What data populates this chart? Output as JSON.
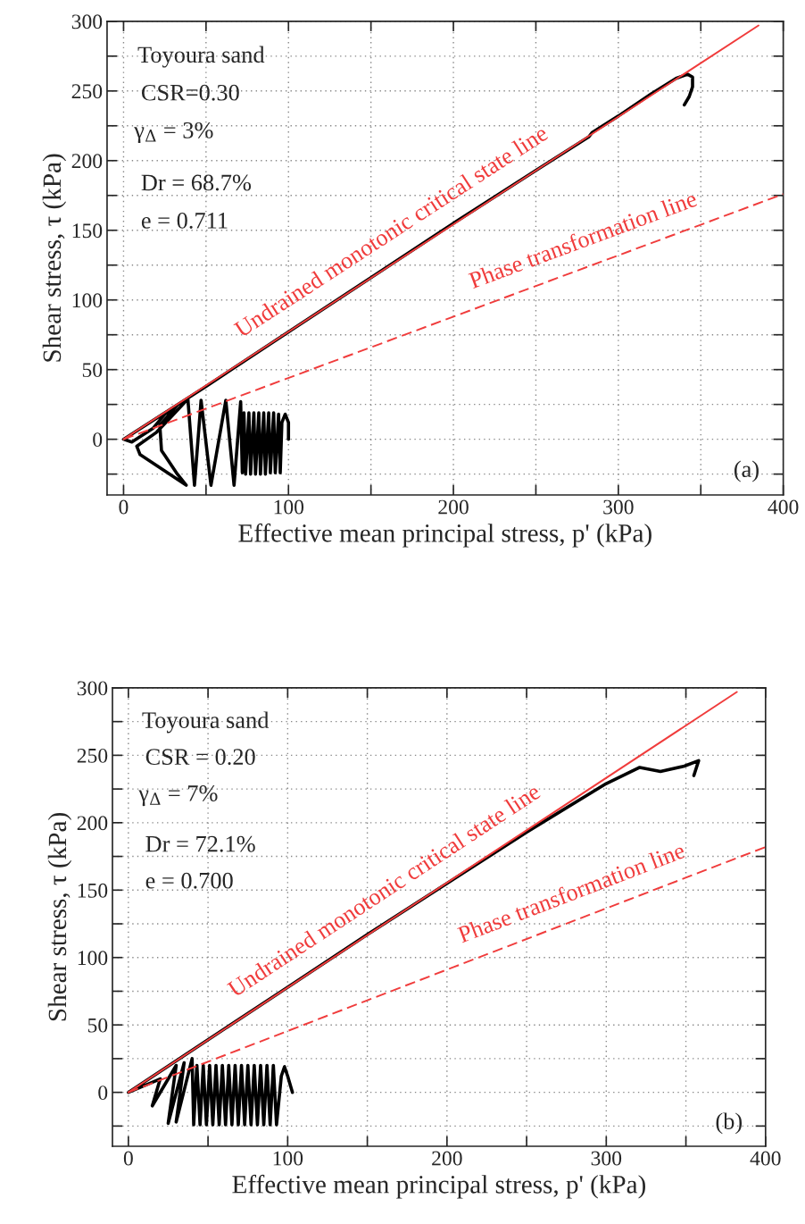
{
  "chart_data": [
    {
      "type": "line",
      "xlabel": "Effective mean principal stress, p' (kPa)",
      "ylabel": "Shear stress, τ (kPa)",
      "xlim": [
        -10,
        400
      ],
      "ylim": [
        -40,
        300
      ],
      "xticks": [
        0,
        {
          "value": 50,
          "label": null
        },
        100,
        {
          "value": 150,
          "label": null
        },
        200,
        {
          "value": 250,
          "label": null
        },
        300,
        {
          "value": 350,
          "label": null
        },
        400
      ],
      "yticks": [
        {
          "value": -25,
          "label": null
        },
        0,
        {
          "value": 25,
          "label": null
        },
        50,
        {
          "value": 75,
          "label": null
        },
        100,
        {
          "value": 125,
          "label": null
        },
        150,
        {
          "value": 175,
          "label": null
        },
        200,
        {
          "value": 225,
          "label": null
        },
        250,
        {
          "value": 275,
          "label": null
        },
        300
      ],
      "grid": true,
      "annotations": [
        "Toyoura sand",
        "CSR=0.30",
        "γ$_{Δ}$ = 3%",
        "Dr = 68.7%",
        "e = 0.711",
        "(a)"
      ],
      "series": [
        {
          "name": "Undrained monotonic critical state line",
          "color": "#f03c3c",
          "line_style": "solid",
          "x": [
            0,
            385
          ],
          "values": [
            0,
            297
          ]
        },
        {
          "name": "Phase transformation line",
          "color": "#f03c3c",
          "line_style": "dashed",
          "x": [
            0,
            400
          ],
          "values": [
            0,
            176
          ]
        },
        {
          "color": "#000000",
          "line_style": "solid",
          "x": [
            100,
            100,
            98,
            96,
            95,
            94,
            92,
            91,
            89,
            88,
            86,
            85,
            83,
            82,
            80,
            79,
            77,
            76,
            74,
            73,
            72,
            71,
            67,
            62,
            53,
            47,
            43,
            39,
            28,
            20,
            8,
            10,
            38,
            32,
            23,
            22,
            33,
            25,
            18,
            5,
            0,
            50,
            100,
            150,
            200,
            250,
            282,
            284,
            300,
            320,
            335,
            342,
            345,
            345,
            343,
            340
          ],
          "values": [
            0,
            12,
            18,
            12,
            -24,
            18,
            -24,
            19,
            -24,
            19,
            -25,
            19,
            -25,
            19,
            -25,
            19,
            -25,
            19,
            -25,
            19,
            -24,
            27,
            -33,
            28,
            -33,
            28,
            -33,
            29,
            15,
            5,
            -5,
            -11,
            -33,
            -24,
            -8,
            10,
            25,
            18,
            8,
            -2,
            0,
            38,
            77,
            116,
            155,
            193,
            217,
            220,
            232,
            248,
            259,
            262,
            260,
            253,
            246,
            240
          ]
        }
      ]
    },
    {
      "type": "line",
      "xlabel": "Effective mean principal stress, p' (kPa)",
      "ylabel": "Shear stress, τ (kPa)",
      "xlim": [
        -10,
        400
      ],
      "ylim": [
        -40,
        300
      ],
      "xticks": [
        0,
        {
          "value": 50,
          "label": null
        },
        100,
        {
          "value": 150,
          "label": null
        },
        200,
        {
          "value": 250,
          "label": null
        },
        300,
        {
          "value": 350,
          "label": null
        },
        400
      ],
      "yticks": [
        {
          "value": -25,
          "label": null
        },
        0,
        {
          "value": 25,
          "label": null
        },
        50,
        {
          "value": 75,
          "label": null
        },
        100,
        {
          "value": 125,
          "label": null
        },
        150,
        {
          "value": 175,
          "label": null
        },
        200,
        {
          "value": 225,
          "label": null
        },
        250,
        {
          "value": 275,
          "label": null
        },
        300
      ],
      "grid": true,
      "annotations": [
        "Toyoura sand",
        "CSR = 0.20",
        "γ$_{Δ}$ = 7%",
        "Dr = 72.1%",
        "e = 0.700",
        "(b)"
      ],
      "series": [
        {
          "name": "Undrained monotonic critical state line",
          "color": "#f03c3c",
          "line_style": "solid",
          "x": [
            0,
            382
          ],
          "values": [
            0,
            297
          ]
        },
        {
          "name": "Phase transformation line",
          "color": "#f03c3c",
          "line_style": "dashed",
          "x": [
            0,
            400
          ],
          "values": [
            0,
            182
          ]
        },
        {
          "color": "#000000",
          "line_style": "solid",
          "x": [
            103,
            100,
            98,
            96,
            93,
            91,
            89,
            87,
            85,
            83,
            81,
            79,
            77,
            75,
            73,
            71,
            69,
            67,
            65,
            63,
            61,
            59,
            57,
            55,
            53,
            51,
            49,
            47,
            45,
            43,
            41,
            40,
            30,
            35,
            25,
            30,
            15,
            20,
            0,
            50,
            100,
            150,
            200,
            250,
            300,
            321,
            334,
            349,
            358,
            355
          ],
          "values": [
            0,
            12,
            19,
            12,
            -24,
            20,
            -24,
            20,
            -24,
            20,
            -24,
            20,
            -24,
            20,
            -24,
            20,
            -24,
            20,
            -24,
            20,
            -24,
            20,
            -24,
            20,
            -24,
            20,
            -24,
            20,
            -24,
            20,
            -24,
            25,
            -22,
            22,
            -23,
            20,
            -10,
            10,
            0,
            39,
            78,
            117,
            155,
            193,
            229,
            241,
            238,
            242,
            246,
            235
          ]
        }
      ]
    }
  ]
}
